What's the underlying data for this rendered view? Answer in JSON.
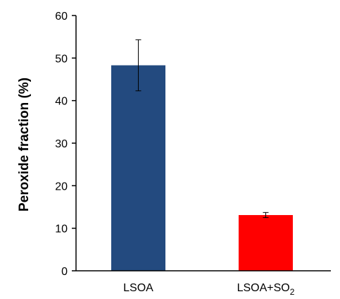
{
  "chart_data": {
    "type": "bar",
    "title": "",
    "xlabel": "",
    "ylabel": "Peroxide fraction (%)",
    "ylim": [
      0,
      60
    ],
    "yticks": [
      0,
      10,
      20,
      30,
      40,
      50,
      60
    ],
    "grid": false,
    "categories": [
      {
        "text": "LSOA",
        "subscript": ""
      },
      {
        "text": "LSOA+SO",
        "subscript": "2"
      }
    ],
    "values": [
      48.3,
      13.1
    ],
    "errors": [
      6.0,
      0.6
    ],
    "colors": [
      "#234a7f",
      "#ff0000"
    ]
  }
}
